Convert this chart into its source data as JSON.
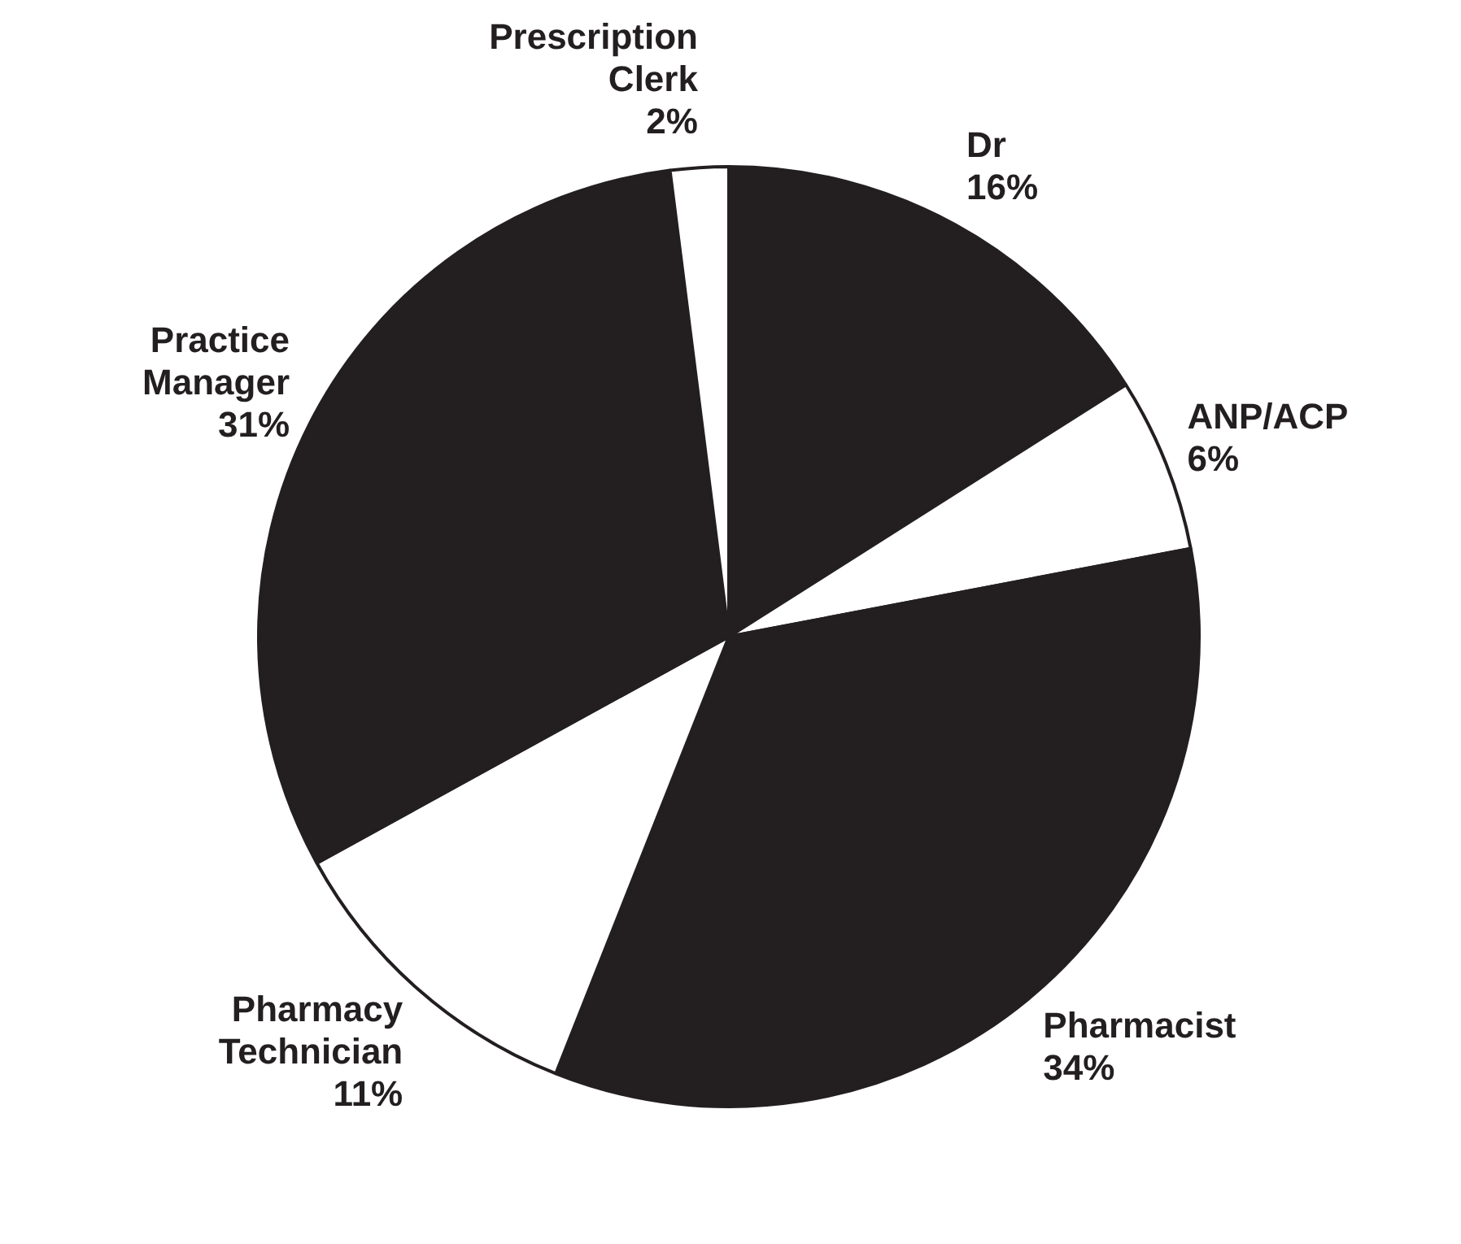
{
  "chart_data": {
    "type": "pie",
    "categories": [
      "Dr",
      "ANP/ACP",
      "Pharmacist",
      "Pharmacy Technician",
      "Practice Manager",
      "Prescription Clerk"
    ],
    "values": [
      16,
      6,
      34,
      11,
      31,
      2
    ],
    "colors": [
      "#231f20",
      "#ffffff",
      "#231f20",
      "#ffffff",
      "#231f20",
      "#ffffff"
    ],
    "value_labels": [
      "16%",
      "6%",
      "34%",
      "11%",
      "31%",
      "2%"
    ],
    "legend": false
  }
}
